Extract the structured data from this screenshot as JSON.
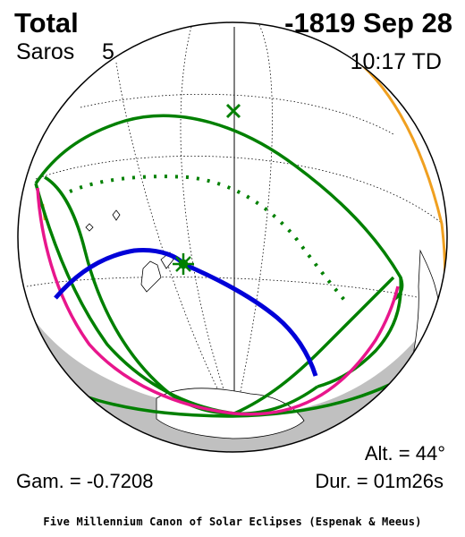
{
  "header": {
    "eclipse_type": "Total",
    "date": "-1819 Sep 28",
    "saros_label": "Saros",
    "saros_number": "5",
    "max_time": "10:17 TD"
  },
  "stats": {
    "altitude": "Alt. = 44°",
    "gamma": "Gam. = -0.7208",
    "duration": "Dur. = 01m26s"
  },
  "footer": {
    "credit": "Five Millennium Canon of Solar Eclipses (Espenak & Meeus)"
  },
  "map": {
    "projection": "orthographic",
    "colors": {
      "penumbral_limits": "#008000",
      "rise_set_curves": "#e8168c",
      "central_path": "#0000d8",
      "night_side": "#c0c0c0",
      "sunrise_sunset_edge": "#f0a020",
      "graticule": "#000000"
    },
    "markers": {
      "greatest_eclipse": "star-marker",
      "subsolar_point": "x-marker"
    }
  }
}
